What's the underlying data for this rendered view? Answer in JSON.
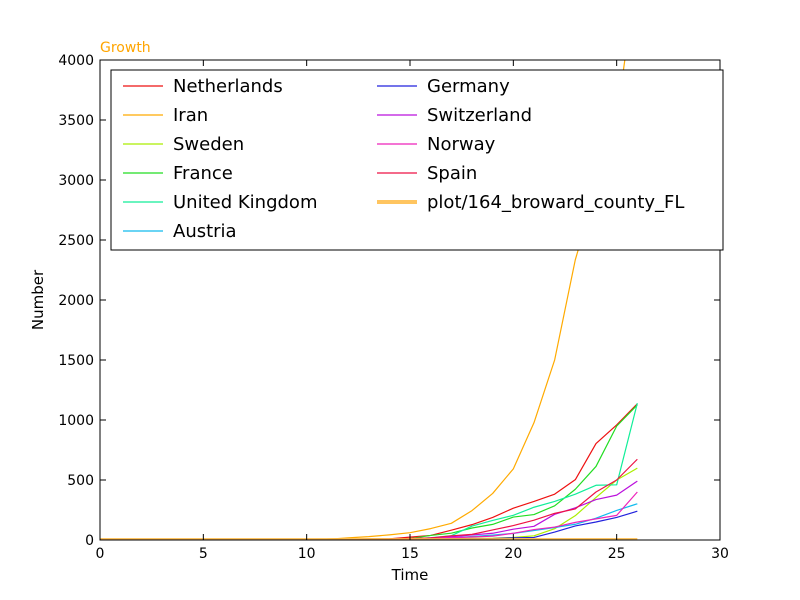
{
  "chart_data": {
    "type": "line",
    "title": "Growth",
    "xlabel": "Time",
    "ylabel": "Number",
    "xlim": [
      0,
      30
    ],
    "ylim": [
      0,
      4000
    ],
    "xticks": [
      0,
      5,
      10,
      15,
      20,
      25,
      30
    ],
    "yticks": [
      0,
      500,
      1000,
      1500,
      2000,
      2500,
      3000,
      3500,
      4000
    ],
    "grid": false,
    "legend_placement": "top",
    "x": [
      0,
      1,
      2,
      3,
      4,
      5,
      6,
      7,
      8,
      9,
      10,
      11,
      12,
      13,
      14,
      15,
      16,
      17,
      18,
      19,
      20,
      21,
      22,
      23,
      24,
      25,
      26
    ],
    "series": [
      {
        "name": "Netherlands",
        "color": "#ee1111",
        "values": [
          0,
          0,
          0,
          0,
          0,
          0,
          0,
          0,
          0,
          0,
          0,
          0,
          1,
          6,
          10,
          24,
          38,
          82,
          128,
          188,
          265,
          321,
          382,
          503,
          804,
          959,
          1135
        ]
      },
      {
        "name": "Iran",
        "color": "#ffaa00",
        "values": [
          0,
          0,
          0,
          0,
          0,
          0,
          0,
          0,
          0,
          0,
          2,
          5,
          18,
          28,
          43,
          61,
          95,
          139,
          245,
          388,
          593,
          978,
          1501,
          2336,
          2922,
          3513,
          4747
        ]
      },
      {
        "name": "Sweden",
        "color": "#aaee00",
        "values": [
          0,
          0,
          0,
          0,
          0,
          0,
          0,
          0,
          0,
          0,
          0,
          1,
          1,
          1,
          1,
          2,
          7,
          12,
          14,
          15,
          21,
          35,
          94,
          203,
          355,
          500,
          599
        ]
      },
      {
        "name": "France",
        "color": "#22dd22",
        "values": [
          0,
          0,
          0,
          0,
          0,
          0,
          0,
          0,
          0,
          0,
          0,
          0,
          2,
          4,
          6,
          12,
          38,
          57,
          100,
          130,
          191,
          212,
          285,
          423,
          613,
          949,
          1126
        ]
      },
      {
        "name": "United Kingdom",
        "color": "#11ee99",
        "values": [
          0,
          0,
          0,
          0,
          0,
          0,
          0,
          0,
          0,
          0,
          0,
          0,
          0,
          2,
          8,
          9,
          19,
          36,
          116,
          163,
          206,
          273,
          321,
          382,
          456,
          460,
          1140
        ]
      },
      {
        "name": "Austria",
        "color": "#11bbee",
        "values": [
          0,
          0,
          0,
          0,
          0,
          0,
          0,
          0,
          0,
          0,
          0,
          0,
          0,
          2,
          2,
          5,
          10,
          18,
          29,
          41,
          55,
          79,
          104,
          131,
          182,
          246,
          302
        ]
      },
      {
        "name": "Germany",
        "color": "#2222dd",
        "values": [
          0,
          0,
          0,
          0,
          0,
          0,
          0,
          0,
          0,
          0,
          0,
          0,
          1,
          4,
          4,
          4,
          5,
          8,
          10,
          12,
          18,
          21,
          66,
          117,
          150,
          188,
          240
        ]
      },
      {
        "name": "Switzerland",
        "color": "#bb11dd",
        "values": [
          0,
          0,
          0,
          0,
          0,
          0,
          0,
          0,
          0,
          0,
          0,
          0,
          0,
          1,
          1,
          8,
          18,
          27,
          42,
          56,
          90,
          114,
          214,
          268,
          337,
          374,
          491
        ]
      },
      {
        "name": "Norway",
        "color": "#ee22bb",
        "values": [
          0,
          0,
          0,
          0,
          0,
          0,
          0,
          0,
          0,
          0,
          0,
          0,
          0,
          0,
          1,
          6,
          15,
          19,
          25,
          32,
          56,
          87,
          108,
          147,
          176,
          205,
          400
        ]
      },
      {
        "name": "Spain",
        "color": "#ee1144",
        "values": [
          0,
          0,
          0,
          0,
          0,
          0,
          0,
          0,
          0,
          0,
          0,
          0,
          0,
          2,
          8,
          13,
          17,
          35,
          47,
          84,
          120,
          165,
          222,
          259,
          400,
          500,
          673
        ]
      },
      {
        "name": "plot/164_broward_county_FL",
        "color": "#ffbb44",
        "values": [
          0,
          0,
          0,
          0,
          0,
          0,
          0,
          0,
          0,
          0,
          0,
          0,
          0,
          0,
          0,
          0,
          0,
          0,
          0,
          0,
          0,
          0,
          0,
          0,
          0,
          0,
          0
        ]
      }
    ]
  }
}
